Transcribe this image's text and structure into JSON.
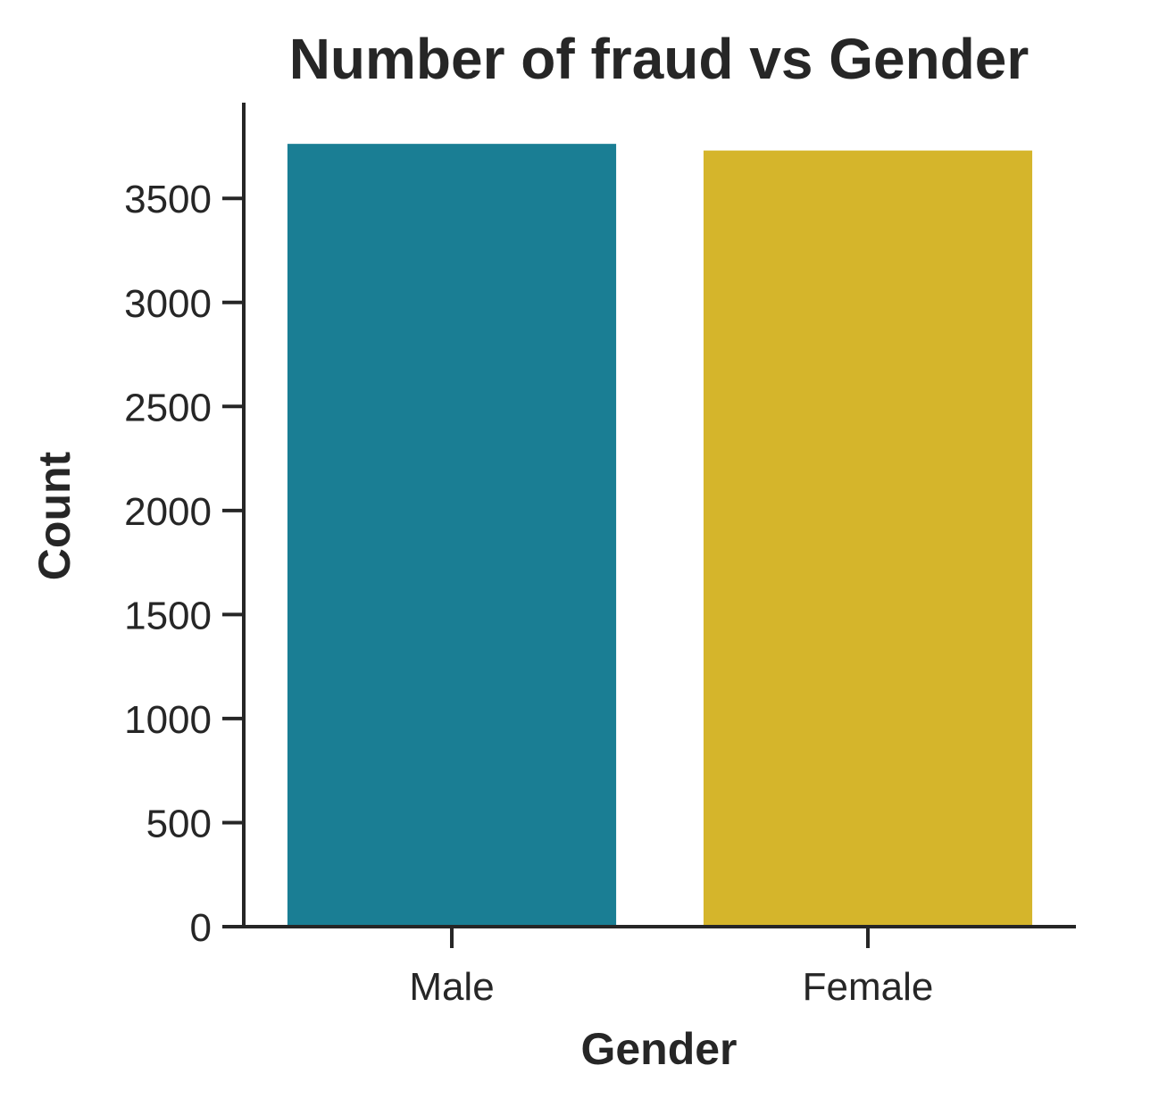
{
  "chart_data": {
    "type": "bar",
    "title": "Number of fraud vs Gender",
    "xlabel": "Gender",
    "ylabel": "Count",
    "categories": [
      "Male",
      "Female"
    ],
    "values": [
      3762,
      3730
    ],
    "colors": [
      "#1a7e94",
      "#d5b52b"
    ],
    "ylim": [
      0,
      3960
    ],
    "yticks": [
      0,
      500,
      1000,
      1500,
      2000,
      2500,
      3000,
      3500
    ],
    "ytick_labels": [
      "0",
      "500",
      "1000",
      "1500",
      "2000",
      "2500",
      "3000",
      "3500"
    ],
    "grid": false,
    "legend": "none",
    "spines": "left-bottom",
    "axis_color": "#262626"
  }
}
